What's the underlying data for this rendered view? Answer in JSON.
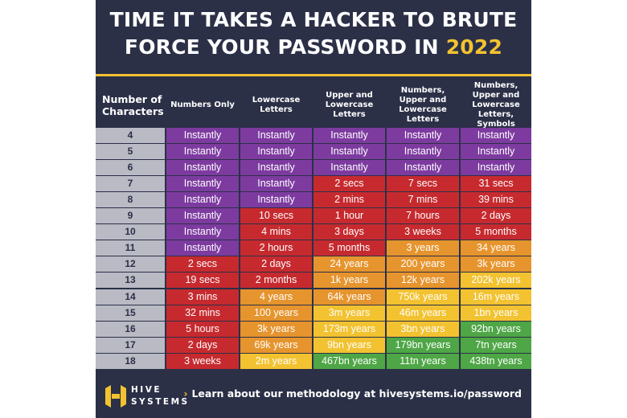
{
  "title": {
    "line1": "TIME IT TAKES A HACKER TO BRUTE",
    "line2_prefix": "FORCE YOUR PASSWORD IN",
    "year": "2022"
  },
  "colors": {
    "background": "#2b3047",
    "accent": "#f2c230",
    "instant": "#7d3ba0",
    "red": "#c62a2f",
    "orange": "#e6942d",
    "yellow": "#f2c230",
    "green": "#4ea646",
    "number_column": "#b9bac4"
  },
  "chart_data": {
    "type": "table",
    "columns": [
      "Number of Characters",
      "Numbers Only",
      "Lowercase Letters",
      "Upper and Lowercase Letters",
      "Numbers, Upper and Lowercase Letters",
      "Numbers, Upper and Lowercase Letters, Symbols"
    ],
    "rows": [
      [
        "4",
        "Instantly",
        "Instantly",
        "Instantly",
        "Instantly",
        "Instantly"
      ],
      [
        "5",
        "Instantly",
        "Instantly",
        "Instantly",
        "Instantly",
        "Instantly"
      ],
      [
        "6",
        "Instantly",
        "Instantly",
        "Instantly",
        "Instantly",
        "Instantly"
      ],
      [
        "7",
        "Instantly",
        "Instantly",
        "2 secs",
        "7 secs",
        "31 secs"
      ],
      [
        "8",
        "Instantly",
        "Instantly",
        "2 mins",
        "7 mins",
        "39 mins"
      ],
      [
        "9",
        "Instantly",
        "10 secs",
        "1 hour",
        "7 hours",
        "2 days"
      ],
      [
        "10",
        "Instantly",
        "4 mins",
        "3 days",
        "3 weeks",
        "5 months"
      ],
      [
        "11",
        "Instantly",
        "2 hours",
        "5 months",
        "3 years",
        "34 years"
      ],
      [
        "12",
        "2 secs",
        "2 days",
        "24 years",
        "200 years",
        "3k years"
      ],
      [
        "13",
        "19 secs",
        "2 months",
        "1k years",
        "12k years",
        "202k years"
      ],
      [
        "14",
        "3 mins",
        "4 years",
        "64k years",
        "750k years",
        "16m years"
      ],
      [
        "15",
        "32 mins",
        "100 years",
        "3m years",
        "46m years",
        "1bn years"
      ],
      [
        "16",
        "5 hours",
        "3k years",
        "173m years",
        "3bn years",
        "92bn years"
      ],
      [
        "17",
        "2 days",
        "69k years",
        "9bn years",
        "179bn years",
        "7tn years"
      ],
      [
        "18",
        "3 weeks",
        "2m years",
        "467bn years",
        "11tn years",
        "438tn years"
      ]
    ],
    "cell_colors": [
      [
        "purple",
        "purple",
        "purple",
        "purple",
        "purple"
      ],
      [
        "purple",
        "purple",
        "purple",
        "purple",
        "purple"
      ],
      [
        "purple",
        "purple",
        "purple",
        "purple",
        "purple"
      ],
      [
        "purple",
        "purple",
        "red",
        "red",
        "red"
      ],
      [
        "purple",
        "purple",
        "red",
        "red",
        "red"
      ],
      [
        "purple",
        "red",
        "red",
        "red",
        "red"
      ],
      [
        "purple",
        "red",
        "red",
        "red",
        "red"
      ],
      [
        "purple",
        "red",
        "red",
        "orange",
        "orange"
      ],
      [
        "red",
        "red",
        "orange",
        "orange",
        "orange"
      ],
      [
        "red",
        "red",
        "orange",
        "orange",
        "yellow"
      ],
      [
        "red",
        "orange",
        "orange",
        "yellow",
        "yellow"
      ],
      [
        "red",
        "orange",
        "yellow",
        "yellow",
        "yellow"
      ],
      [
        "red",
        "orange",
        "yellow",
        "yellow",
        "green"
      ],
      [
        "red",
        "orange",
        "yellow",
        "green",
        "green"
      ],
      [
        "red",
        "yellow",
        "green",
        "green",
        "green"
      ]
    ]
  },
  "footer": {
    "brand_line1": "HIVE",
    "brand_line2": "SYSTEMS",
    "cta": "Learn about our methodology at hivesystems.io/password"
  }
}
